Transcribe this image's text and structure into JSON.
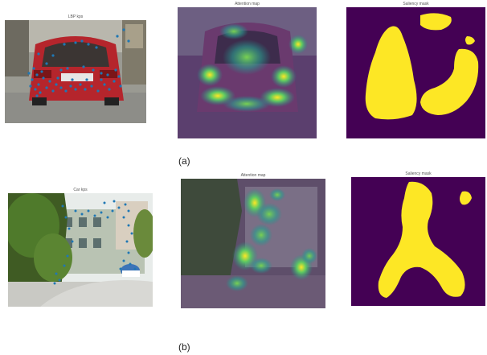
{
  "figure": {
    "rows": [
      {
        "label": "(a)",
        "panels": [
          {
            "title": "LBP kps"
          },
          {
            "title": "Attention map"
          },
          {
            "title": "Saliency mask"
          }
        ]
      },
      {
        "label": "(b)",
        "panels": [
          {
            "title": "Car kps"
          },
          {
            "title": "Attention map"
          },
          {
            "title": "Saliency mask"
          }
        ]
      }
    ]
  },
  "colors": {
    "mask_background": "#440154",
    "mask_foreground": "#fde725",
    "keypoint": "#1f77b4",
    "car_red": "#b5252c"
  }
}
